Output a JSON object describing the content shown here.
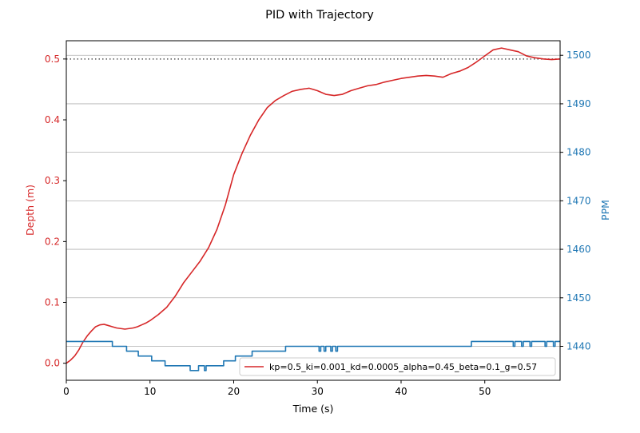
{
  "chart_data": {
    "type": "line",
    "title": "PID with Trajectory",
    "xlabel": "Time (s)",
    "ylabel_left": "Depth (m)",
    "ylabel_right": "PPM",
    "xlim": [
      0,
      59
    ],
    "ylim_left": [
      -0.028,
      0.53
    ],
    "ylim_right": [
      1433,
      1503
    ],
    "x_ticks": [
      "0",
      "10",
      "20",
      "30",
      "40",
      "50"
    ],
    "y_ticks_left": [
      "0.0",
      "0.1",
      "0.2",
      "0.3",
      "0.4",
      "0.5"
    ],
    "y_ticks_right": [
      "1440",
      "1450",
      "1460",
      "1470",
      "1480",
      "1490",
      "1500"
    ],
    "grid": "horizontal, right axis",
    "legend_position": "lower right",
    "colors": {
      "depth": "#d62728",
      "ppm": "#1f77b4",
      "target": "#555555",
      "grid": "#b0b0b0"
    },
    "reference_line": {
      "y": 0.5,
      "style": "dotted"
    },
    "series": [
      {
        "name": "kp=0.5_ki=0.001_kd=0.0005_alpha=0.45_beta=0.1_g=0.57",
        "axis": "left",
        "x": [
          0,
          0.5,
          1,
          1.5,
          2,
          2.5,
          3,
          3.5,
          4,
          4.5,
          5,
          5.5,
          6,
          6.5,
          7,
          7.5,
          8,
          8.5,
          9,
          9.5,
          10,
          11,
          12,
          13,
          14,
          15,
          16,
          17,
          18,
          19,
          20,
          21,
          22,
          23,
          24,
          25,
          26,
          27,
          28,
          29,
          30,
          31,
          32,
          33,
          34,
          35,
          36,
          37,
          38,
          39,
          40,
          41,
          42,
          43,
          44,
          45,
          46,
          47,
          48,
          49,
          50,
          51,
          52,
          53,
          54,
          55,
          56,
          57,
          58,
          59
        ],
        "y": [
          0.0,
          0.005,
          0.012,
          0.022,
          0.035,
          0.045,
          0.053,
          0.06,
          0.063,
          0.064,
          0.062,
          0.06,
          0.058,
          0.057,
          0.056,
          0.057,
          0.058,
          0.06,
          0.063,
          0.066,
          0.07,
          0.08,
          0.092,
          0.11,
          0.132,
          0.15,
          0.168,
          0.19,
          0.22,
          0.26,
          0.31,
          0.345,
          0.375,
          0.4,
          0.42,
          0.432,
          0.44,
          0.447,
          0.45,
          0.452,
          0.448,
          0.442,
          0.44,
          0.442,
          0.448,
          0.452,
          0.456,
          0.458,
          0.462,
          0.465,
          0.468,
          0.47,
          0.472,
          0.473,
          0.472,
          0.47,
          0.476,
          0.48,
          0.486,
          0.495,
          0.505,
          0.515,
          0.518,
          0.515,
          0.512,
          0.505,
          0.502,
          0.5,
          0.499,
          0.5
        ]
      },
      {
        "name": "PPM",
        "axis": "right",
        "x": [
          0,
          5.5,
          5.5,
          7.2,
          7.2,
          8.6,
          8.6,
          10.2,
          10.2,
          11.8,
          11.8,
          14.8,
          14.8,
          15.8,
          15.8,
          16.5,
          16.5,
          16.7,
          16.7,
          18.8,
          18.8,
          20.2,
          20.2,
          22.2,
          22.2,
          26.2,
          26.2,
          30.2,
          30.2,
          30.4,
          30.4,
          30.8,
          30.8,
          31.0,
          31.0,
          31.6,
          31.6,
          31.8,
          31.8,
          32.2,
          32.2,
          32.4,
          32.4,
          48.4,
          48.4,
          53.4,
          53.4,
          53.6,
          53.6,
          54.4,
          54.4,
          54.6,
          54.6,
          55.4,
          55.4,
          55.6,
          55.6,
          57.2,
          57.2,
          57.4,
          57.4,
          58.2,
          58.2,
          58.4,
          58.4,
          59
        ],
        "y": [
          1441,
          1441,
          1440,
          1440,
          1439,
          1439,
          1438,
          1438,
          1437,
          1437,
          1436,
          1436,
          1435,
          1435,
          1436,
          1436,
          1435,
          1435,
          1436,
          1436,
          1437,
          1437,
          1438,
          1438,
          1439,
          1439,
          1440,
          1440,
          1439,
          1439,
          1440,
          1440,
          1439,
          1439,
          1440,
          1440,
          1439,
          1439,
          1440,
          1440,
          1439,
          1439,
          1440,
          1440,
          1441,
          1441,
          1440,
          1440,
          1441,
          1441,
          1440,
          1440,
          1441,
          1441,
          1440,
          1440,
          1441,
          1441,
          1440,
          1440,
          1441,
          1441,
          1440,
          1440,
          1441,
          1441
        ]
      }
    ]
  }
}
